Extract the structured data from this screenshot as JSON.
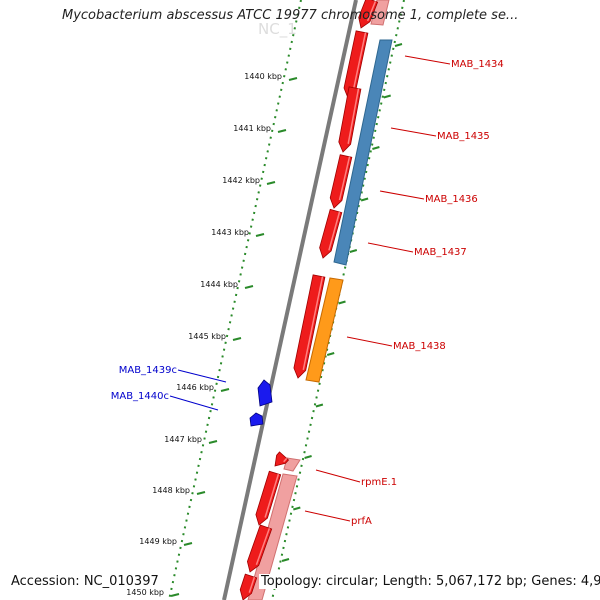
{
  "header": {
    "title": "Mycobacterium abscessus ATCC 19977 chromosome 1, complete se...",
    "watermark": "NC_1"
  },
  "footer": {
    "accession": "Accession: NC_010397",
    "topology": "Topology: circular; Length: 5,067,172 bp; Genes: 4,970"
  },
  "colors": {
    "forward_gene": "#ee1c1c",
    "forward_gene_light": "#f08a8a",
    "reverse_gene": "#1a1aee",
    "cds_blue": "#4a86b8",
    "cds_orange": "#ff9a1a",
    "cds_pink": "#f0a0a0",
    "ruler": "#2a8a2a",
    "backbone": "#808080",
    "label_red": "#cc0000",
    "label_blue": "#0000cc"
  },
  "ruler": {
    "ticks": [
      "1440 kbp",
      "1441 kbp",
      "1442 kbp",
      "1443 kbp",
      "1444 kbp",
      "1445 kbp",
      "1446 kbp",
      "1447 kbp",
      "1448 kbp",
      "1449 kbp",
      "1450 kbp"
    ]
  },
  "genes": {
    "labels": [
      {
        "text": "MAB_1434",
        "color": "red"
      },
      {
        "text": "MAB_1435",
        "color": "red"
      },
      {
        "text": "MAB_1436",
        "color": "red"
      },
      {
        "text": "MAB_1437",
        "color": "red"
      },
      {
        "text": "MAB_1438",
        "color": "red"
      },
      {
        "text": "MAB_1439c",
        "color": "blue"
      },
      {
        "text": "MAB_1440c",
        "color": "blue"
      },
      {
        "text": "rpmE.1",
        "color": "red"
      },
      {
        "text": "prfA",
        "color": "red"
      }
    ]
  }
}
